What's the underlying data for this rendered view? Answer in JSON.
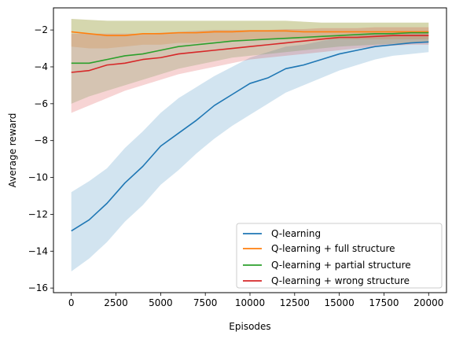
{
  "chart_data": {
    "type": "line",
    "title": "",
    "xlabel": "Episodes",
    "ylabel": "Average reward",
    "xlim": [
      -1000,
      21000
    ],
    "ylim": [
      -16.25,
      -0.8
    ],
    "xticks": [
      0,
      2500,
      5000,
      7500,
      10000,
      12500,
      15000,
      17500,
      20000
    ],
    "xtick_labels": [
      "0",
      "2500",
      "5000",
      "7500",
      "10000",
      "12500",
      "15000",
      "17500",
      "20000"
    ],
    "yticks": [
      -16,
      -14,
      -12,
      -10,
      -8,
      -6,
      -4,
      -2
    ],
    "ytick_labels": [
      "−16",
      "−14",
      "−12",
      "−10",
      "−8",
      "−6",
      "−4",
      "−2"
    ],
    "grid": false,
    "legend_position": "lower-right",
    "shaded_band": "spread around each series mean",
    "x": [
      0,
      1000,
      2000,
      3000,
      4000,
      5000,
      6000,
      7000,
      8000,
      9000,
      10000,
      11000,
      12000,
      13000,
      14000,
      15000,
      16000,
      17000,
      18000,
      19000,
      20000
    ],
    "series": [
      {
        "name": "Q-learning",
        "color": "#1f77b4",
        "values": [
          -12.9,
          -12.3,
          -11.4,
          -10.3,
          -9.4,
          -8.3,
          -7.6,
          -6.9,
          -6.1,
          -5.5,
          -4.9,
          -4.6,
          -4.1,
          -3.9,
          -3.6,
          -3.3,
          -3.1,
          -2.9,
          -2.8,
          -2.7,
          -2.65
        ],
        "lower": [
          -15.1,
          -14.4,
          -13.5,
          -12.4,
          -11.5,
          -10.4,
          -9.6,
          -8.7,
          -7.9,
          -7.2,
          -6.6,
          -6.0,
          -5.4,
          -5.0,
          -4.6,
          -4.2,
          -3.9,
          -3.6,
          -3.4,
          -3.3,
          -3.2
        ],
        "upper": [
          -10.8,
          -10.2,
          -9.5,
          -8.4,
          -7.5,
          -6.5,
          -5.7,
          -5.1,
          -4.5,
          -4.0,
          -3.5,
          -3.2,
          -2.9,
          -2.8,
          -2.6,
          -2.4,
          -2.3,
          -2.2,
          -2.15,
          -2.1,
          -2.05
        ]
      },
      {
        "name": "Q-learning + full structure",
        "color": "#ff7f0e",
        "values": [
          -2.1,
          -2.2,
          -2.3,
          -2.3,
          -2.2,
          -2.2,
          -2.15,
          -2.15,
          -2.1,
          -2.1,
          -2.05,
          -2.05,
          -2.05,
          -2.1,
          -2.1,
          -2.1,
          -2.1,
          -2.1,
          -2.1,
          -2.1,
          -2.1
        ],
        "lower": [
          -2.9,
          -3.0,
          -3.0,
          -2.9,
          -2.8,
          -2.8,
          -2.7,
          -2.7,
          -2.6,
          -2.6,
          -2.5,
          -2.5,
          -2.5,
          -2.5,
          -2.5,
          -2.5,
          -2.5,
          -2.5,
          -2.5,
          -2.5,
          -2.5
        ],
        "upper": [
          -1.4,
          -1.45,
          -1.5,
          -1.5,
          -1.5,
          -1.5,
          -1.5,
          -1.5,
          -1.5,
          -1.5,
          -1.5,
          -1.5,
          -1.5,
          -1.55,
          -1.6,
          -1.6,
          -1.6,
          -1.6,
          -1.6,
          -1.6,
          -1.6
        ]
      },
      {
        "name": "Q-learning + partial structure",
        "color": "#2ca02c",
        "values": [
          -3.8,
          -3.8,
          -3.6,
          -3.4,
          -3.3,
          -3.1,
          -2.9,
          -2.8,
          -2.7,
          -2.6,
          -2.55,
          -2.5,
          -2.45,
          -2.4,
          -2.35,
          -2.3,
          -2.25,
          -2.2,
          -2.2,
          -2.15,
          -2.15
        ],
        "lower": [
          -6.0,
          -5.6,
          -5.3,
          -5.0,
          -4.7,
          -4.4,
          -4.1,
          -3.9,
          -3.7,
          -3.5,
          -3.4,
          -3.3,
          -3.2,
          -3.1,
          -3.0,
          -2.9,
          -2.85,
          -2.8,
          -2.75,
          -2.7,
          -2.7
        ],
        "upper": [
          -1.4,
          -1.45,
          -1.5,
          -1.5,
          -1.5,
          -1.5,
          -1.5,
          -1.5,
          -1.5,
          -1.5,
          -1.5,
          -1.5,
          -1.5,
          -1.55,
          -1.6,
          -1.6,
          -1.6,
          -1.6,
          -1.6,
          -1.6,
          -1.6
        ]
      },
      {
        "name": "Q-learning + wrong structure",
        "color": "#d62728",
        "values": [
          -4.3,
          -4.2,
          -3.9,
          -3.8,
          -3.6,
          -3.5,
          -3.3,
          -3.2,
          -3.1,
          -3.0,
          -2.9,
          -2.8,
          -2.7,
          -2.6,
          -2.5,
          -2.4,
          -2.4,
          -2.35,
          -2.3,
          -2.3,
          -2.3
        ],
        "lower": [
          -6.5,
          -6.1,
          -5.7,
          -5.3,
          -5.0,
          -4.7,
          -4.4,
          -4.2,
          -4.0,
          -3.8,
          -3.6,
          -3.5,
          -3.4,
          -3.3,
          -3.2,
          -3.1,
          -3.0,
          -2.9,
          -2.85,
          -2.8,
          -2.8
        ],
        "upper": [
          -2.2,
          -2.2,
          -2.2,
          -2.2,
          -2.2,
          -2.15,
          -2.1,
          -2.05,
          -2.0,
          -2.0,
          -2.0,
          -2.0,
          -1.95,
          -1.95,
          -1.9,
          -1.9,
          -1.9,
          -1.85,
          -1.85,
          -1.85,
          -1.85
        ]
      }
    ]
  }
}
